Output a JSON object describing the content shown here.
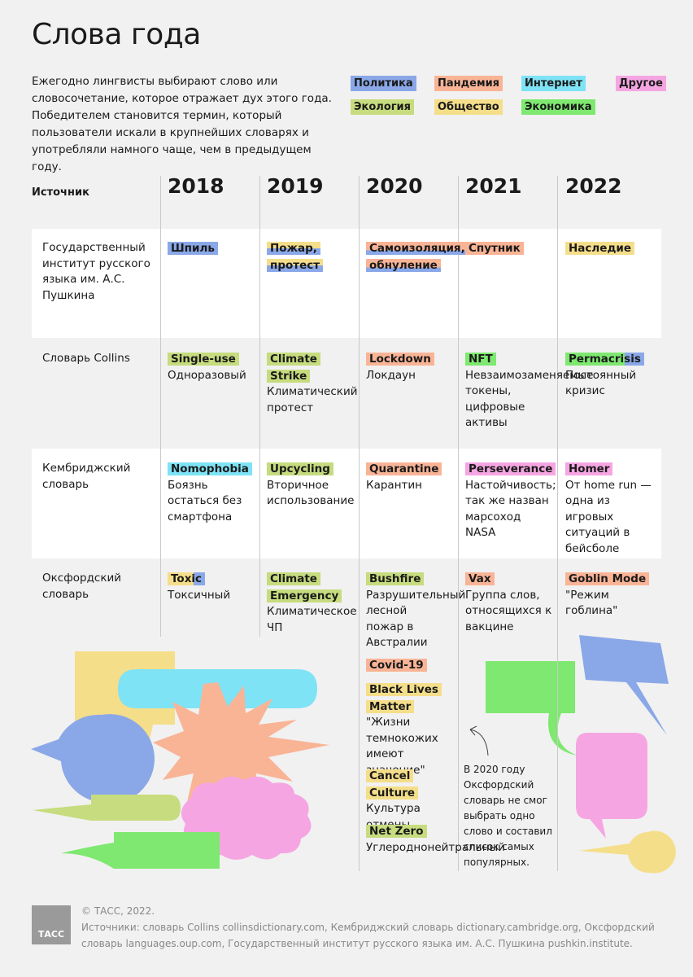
{
  "title": "Слова года",
  "intro": "Ежегодно лингвисты выбирают слово или словосочетание, которое отражает дух этого года. Победителем становится термин, который пользователи искали в крупнейших словарях и употребляли намного чаще, чем в предыдущем году.",
  "colors": {
    "politics": "#8aa8e8",
    "pandemic": "#f9b496",
    "internet": "#7ee3f5",
    "other": "#f5a6e2",
    "ecology": "#c6dc7e",
    "society": "#f5de8a",
    "economy": "#7ee870"
  },
  "legend": [
    {
      "label": "Политика",
      "cat": "politics"
    },
    {
      "label": "Пандемия",
      "cat": "pandemic"
    },
    {
      "label": "Интернет",
      "cat": "internet"
    },
    {
      "label": "Другое",
      "cat": "other"
    },
    {
      "label": "Экология",
      "cat": "ecology"
    },
    {
      "label": "Общество",
      "cat": "society"
    },
    {
      "label": "Экономика",
      "cat": "economy"
    }
  ],
  "table": {
    "source_header": "Источник",
    "years": [
      "2018",
      "2019",
      "2020",
      "2021",
      "2022"
    ],
    "rows": [
      {
        "source": "Государственный институт русского языка им. А.С. Пушкина",
        "cells": [
          {
            "word": "Шпиль",
            "cat": "politics"
          },
          {
            "word": "Пожар, протест",
            "cat": "society"
          },
          {
            "word": "Самоизоляция, обнуление",
            "cat": "pandemic"
          },
          {
            "word": "Спутник",
            "cat": "pandemic"
          },
          {
            "word": "Наследие",
            "cat": "society"
          }
        ]
      },
      {
        "source": "Словарь Collins",
        "cells": [
          {
            "word": "Single-use",
            "cat": "ecology",
            "translation": "Одноразовый"
          },
          {
            "word": "Climate Strike",
            "cat": "ecology",
            "translation": "Климатический протест"
          },
          {
            "word": "Lockdown",
            "cat": "pandemic",
            "translation": "Локдаун"
          },
          {
            "word": "NFT",
            "cat": "economy",
            "translation": "Невзаимозаменяемые токены, цифровые активы"
          },
          {
            "word": "Permacrisis",
            "cat": "economy",
            "translation": "Постоянный кризис"
          }
        ]
      },
      {
        "source": "Кембриджский словарь",
        "cells": [
          {
            "word": "Nomophobia",
            "cat": "internet",
            "translation": "Боязнь остаться без смартфона"
          },
          {
            "word": "Upcycling",
            "cat": "ecology",
            "translation": "Вторичное использование"
          },
          {
            "word": "Quarantine",
            "cat": "pandemic",
            "translation": "Карантин"
          },
          {
            "word": "Perseverance",
            "cat": "other",
            "translation": "Настойчивость; так же назван марсоход NASA"
          },
          {
            "word": "Homer",
            "cat": "other",
            "translation": "От home run — одна из игровых ситуаций в бейсболе"
          }
        ]
      },
      {
        "source": "Оксфордский словарь",
        "cells": [
          {
            "word": "Toxic",
            "cat": "society",
            "translation": "Токсичный"
          },
          {
            "word": "Climate Emergency",
            "cat": "ecology",
            "translation": "Климатическое ЧП"
          },
          {
            "word": "Bushfire",
            "cat": "ecology",
            "translation": "Разрушительный лесной пожар в Австралии"
          },
          {
            "word": "Vax",
            "cat": "pandemic",
            "translation": "Группа слов, относящихся к вакцине"
          },
          {
            "word": "Goblin Mode",
            "cat": "pandemic",
            "translation": "\"Режим гоблина\""
          }
        ]
      }
    ],
    "oxford_2020_extra": [
      {
        "word": "Covid-19",
        "cat": "pandemic"
      },
      {
        "word": "Black Lives Matter",
        "cat": "society",
        "translation": "\"Жизни темнокожих имеют значение\""
      },
      {
        "word": "Cancel Culture",
        "cat": "society",
        "translation": "Культура отмены"
      },
      {
        "word": "Net Zero",
        "cat": "ecology",
        "translation": "Углероднонейтральный"
      }
    ]
  },
  "note": "В 2020 году Оксфордский словарь не смог выбрать одно слово и составил список самых популярных.",
  "footer": {
    "copyright": "© ТАСС, 2022.",
    "sources": "Источники: словарь Collins collinsdictionary.com, Кембриджский словарь dictionary.cambridge.org, Оксфордский словарь languages.oup.com, Государственный институт русского языка им. А.С. Пушкина pushkin.institute.",
    "logo": "ТАСС"
  }
}
